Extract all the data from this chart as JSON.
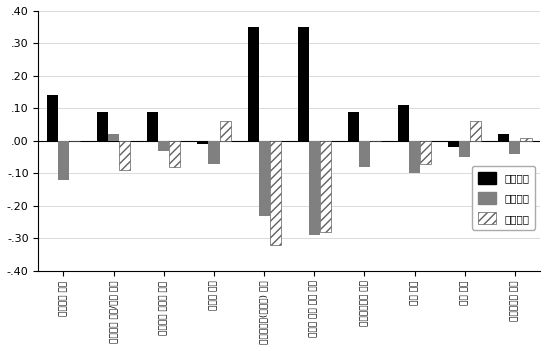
{
  "categories": [
    "자자체장 의지",
    "지자체의 인적/물적 지원",
    "공무원의 호의적 태도",
    "농어민 의지",
    "농어민단체(사무국) 역량",
    "농어민 참여 관련 교육",
    "농어민단체간 협력",
    "의회 관계",
    "농협 관계",
    "중앙정부의 지원"
  ],
  "시범지역": [
    0.14,
    0.09,
    0.09,
    -0.01,
    0.35,
    0.35,
    0.09,
    0.11,
    -0.02,
    0.02
  ],
  "사례지역": [
    -0.12,
    0.02,
    -0.03,
    -0.07,
    -0.23,
    -0.29,
    -0.08,
    -0.1,
    -0.05,
    -0.04
  ],
  "일반지역": [
    0.0,
    -0.09,
    -0.08,
    0.06,
    -0.32,
    -0.28,
    0.0,
    -0.07,
    0.06,
    0.01
  ],
  "ylim": [
    -0.4,
    0.4
  ],
  "yticks": [
    -0.4,
    -0.3,
    -0.2,
    -0.1,
    0.0,
    0.1,
    0.2,
    0.3,
    0.4
  ],
  "yticklabels": [
    "-.40",
    "-.30",
    "-.20",
    "-.10",
    ".00",
    ".10",
    ".20",
    ".30",
    ".40"
  ],
  "color_sibeom": "#000000",
  "color_sarye": "#808080",
  "color_ilban_face": "#ffffff",
  "color_ilban_edge": "#606060",
  "legend_labels": [
    "시범지역",
    "사례지역",
    "일반지역"
  ],
  "bar_width": 0.22
}
